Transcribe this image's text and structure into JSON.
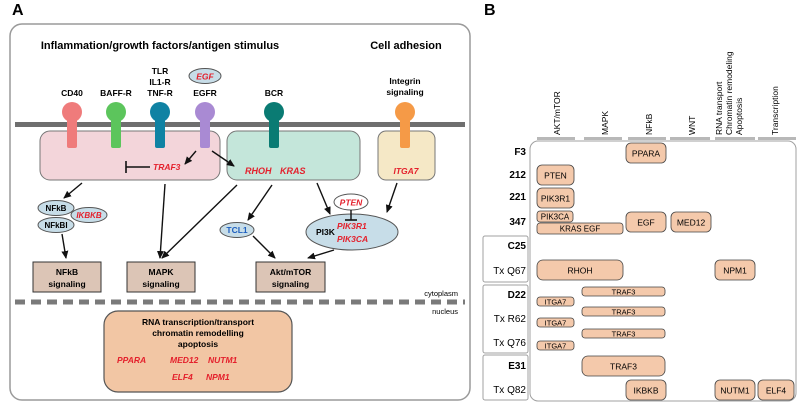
{
  "panel_a": {
    "label": "A",
    "header_main": "Inflammation/growth factors/antigen stimulus",
    "header_adhesion": "Cell adhesion",
    "receptors": {
      "cd40": "CD40",
      "baffr": "BAFF-R",
      "tlr": [
        "TLR",
        "IL1-R",
        "TNF-R"
      ],
      "egf": "EGF",
      "egfr": "EGFR",
      "bcr": "BCR",
      "integrin": [
        "Integrin",
        "signaling"
      ]
    },
    "genes": {
      "traf3": "TRAF3",
      "rhoh": "RHOH",
      "kras": "KRAS",
      "pten": "PTEN",
      "itga7": "ITGA7",
      "nfkb": "NFkB",
      "nfkbi": "NFkBI",
      "ikbkb": "IKBKB",
      "tcl1": "TCL1",
      "pi3k": "PI3K",
      "pik3r1": "PIK3R1",
      "pik3ca": "PIK3CA"
    },
    "outputs": {
      "nfkb": [
        "NFkB",
        "signaling"
      ],
      "mapk": [
        "MAPK",
        "signaling"
      ],
      "akt": [
        "Akt/mTOR",
        "signaling"
      ]
    },
    "compartments": {
      "cytoplasm": "cytoplasm",
      "nucleus": "nucleus"
    },
    "nucleus_box": {
      "title": [
        "RNA transcription/transport",
        "chromatin remodelling",
        "apoptosis"
      ],
      "ppara": "PPARA",
      "med12": "MED12",
      "nutm1": "NUTM1",
      "elf4": "ELF4",
      "npm1": "NPM1"
    }
  },
  "panel_b": {
    "label": "B",
    "columns": [
      "AKT/mTOR",
      "MAPK",
      "NFkB",
      "WNT",
      "RNA transport",
      "Chromatin remodeling",
      "Apoptosis",
      "Transcription"
    ],
    "rows": {
      "f3": "F3",
      "r212": "212",
      "r221": "221",
      "r347": "347",
      "c25": "C25",
      "txq67": "Tx Q67",
      "d22": "D22",
      "txr62": "Tx R62",
      "txq76": "Tx Q76",
      "e31": "E31",
      "txq82": "Tx Q82"
    },
    "cells": {
      "ppara": "PPARA",
      "pten": "PTEN",
      "pik3r1": "PIK3R1",
      "pik3ca": "PIK3CA",
      "kras_egf": "KRAS EGF",
      "egf": "EGF",
      "med12": "MED12",
      "rhoh": "RHOH",
      "npm1": "NPM1",
      "itga7": "ITGA7",
      "traf3": "TRAF3",
      "ikbkb": "IKBKB",
      "nutm1": "NUTM1",
      "elf4": "ELF4"
    }
  },
  "colors": {
    "gene_red": "#e4202c",
    "tcl1_blue": "#1f5fbf",
    "cell_fill": "#f4c9ab",
    "output_fill": "#dcc5b6",
    "nucleus_fill": "#f2c6a4",
    "traf_box": "#f3d5da",
    "bcr_box": "#c4e6da",
    "itga_box": "#f5e8c6",
    "oval_fill": "#c7dde8"
  }
}
